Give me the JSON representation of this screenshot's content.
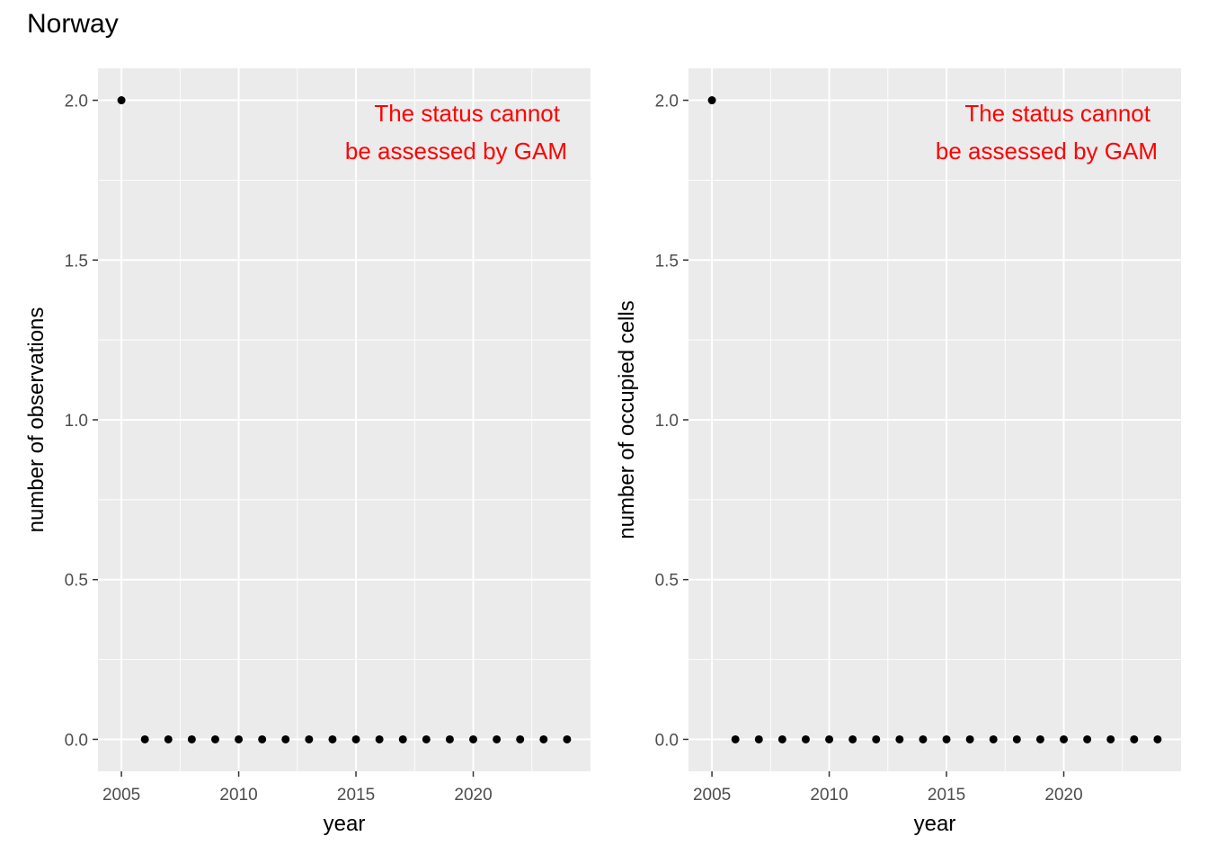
{
  "title": "Norway",
  "chart_data": [
    {
      "type": "scatter",
      "title": "",
      "xlabel": "year",
      "ylabel": "number of observations",
      "xlim": [
        2004,
        2025
      ],
      "ylim": [
        -0.1,
        2.1
      ],
      "x_ticks": [
        2005,
        2010,
        2015,
        2020
      ],
      "y_ticks": [
        0.0,
        0.5,
        1.0,
        1.5,
        2.0
      ],
      "x_tick_labels": [
        "2005",
        "2010",
        "2015",
        "2020"
      ],
      "y_tick_labels": [
        "0.0",
        "0.5",
        "1.0",
        "1.5",
        "2.0"
      ],
      "grid": true,
      "annotation": {
        "lines": [
          "The status cannot",
          "be assessed by GAM"
        ],
        "color": "#ff0000"
      },
      "x": [
        2005,
        2006,
        2007,
        2008,
        2009,
        2010,
        2011,
        2012,
        2013,
        2014,
        2015,
        2016,
        2017,
        2018,
        2019,
        2020,
        2021,
        2022,
        2023,
        2024
      ],
      "y": [
        2,
        0,
        0,
        0,
        0,
        0,
        0,
        0,
        0,
        0,
        0,
        0,
        0,
        0,
        0,
        0,
        0,
        0,
        0,
        0
      ],
      "point_color": "#000000",
      "panel_color": "#ebebeb",
      "grid_color": "#ffffff"
    },
    {
      "type": "scatter",
      "title": "",
      "xlabel": "year",
      "ylabel": "number of occupied cells",
      "xlim": [
        2004,
        2025
      ],
      "ylim": [
        -0.1,
        2.1
      ],
      "x_ticks": [
        2005,
        2010,
        2015,
        2020
      ],
      "y_ticks": [
        0.0,
        0.5,
        1.0,
        1.5,
        2.0
      ],
      "x_tick_labels": [
        "2005",
        "2010",
        "2015",
        "2020"
      ],
      "y_tick_labels": [
        "0.0",
        "0.5",
        "1.0",
        "1.5",
        "2.0"
      ],
      "grid": true,
      "annotation": {
        "lines": [
          "The status cannot",
          "be assessed by GAM"
        ],
        "color": "#ff0000"
      },
      "x": [
        2005,
        2006,
        2007,
        2008,
        2009,
        2010,
        2011,
        2012,
        2013,
        2014,
        2015,
        2016,
        2017,
        2018,
        2019,
        2020,
        2021,
        2022,
        2023,
        2024
      ],
      "y": [
        2,
        0,
        0,
        0,
        0,
        0,
        0,
        0,
        0,
        0,
        0,
        0,
        0,
        0,
        0,
        0,
        0,
        0,
        0,
        0
      ],
      "point_color": "#000000",
      "panel_color": "#ebebeb",
      "grid_color": "#ffffff"
    }
  ]
}
